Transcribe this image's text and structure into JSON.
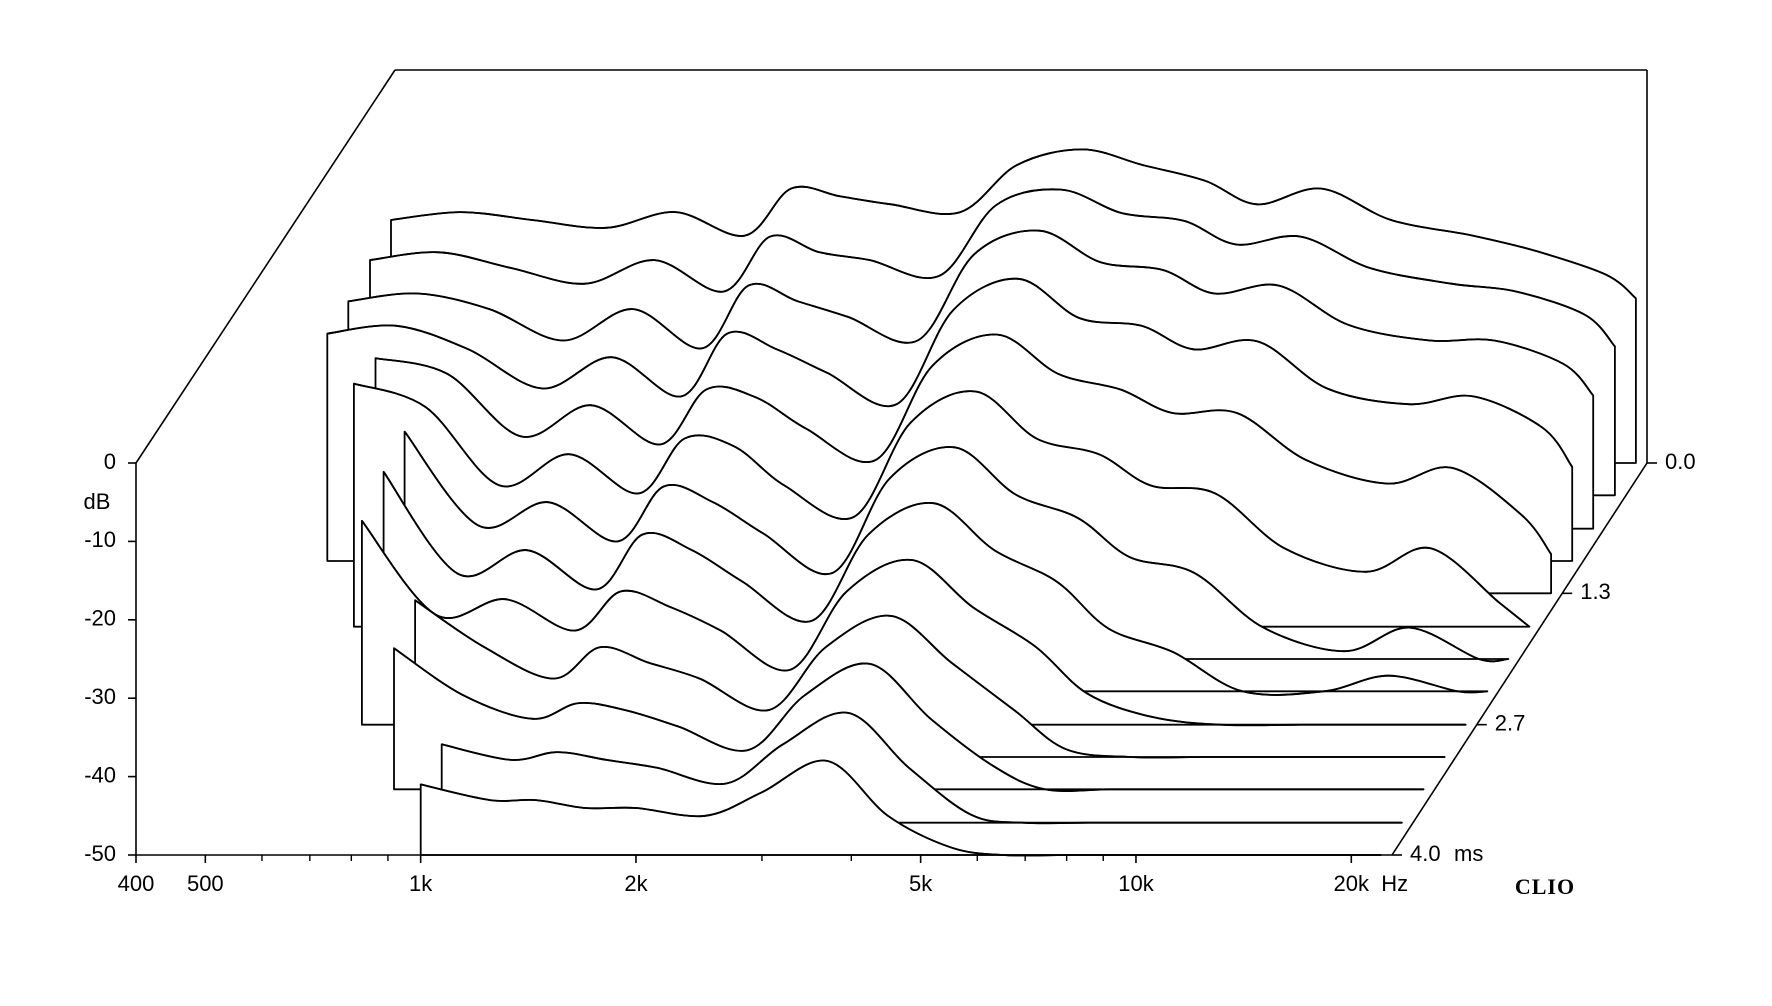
{
  "chart_data": {
    "type": "waterfall",
    "x": [
      400,
      500,
      630,
      800,
      1000,
      1250,
      1450,
      1700,
      2000,
      2500,
      3000,
      3700,
      4500,
      5500,
      6500,
      8000,
      10000,
      13000,
      16000,
      20000,
      22000
    ],
    "xlim": [
      400,
      22800
    ],
    "log_x": true,
    "xticks": [
      400,
      500,
      {
        "value": 1000,
        "label": "1k"
      },
      {
        "value": 2000,
        "label": "2k"
      },
      {
        "value": 5000,
        "label": "5k"
      },
      {
        "value": 10000,
        "label": "10k"
      },
      {
        "value": 20000,
        "label": "20k"
      }
    ],
    "xminorticks": [
      600,
      700,
      800,
      900,
      3000,
      4000,
      6000,
      7000,
      8000,
      9000
    ],
    "x_unit": "Hz",
    "ylim": [
      -50,
      0
    ],
    "yticks": [
      0,
      -10,
      -20,
      -30,
      -40,
      -50
    ],
    "y_unit": "dB",
    "zlim": [
      0,
      4
    ],
    "zticks": [
      {
        "value": 0,
        "label": "0.0"
      },
      {
        "value": 1.33,
        "label": "1.3"
      },
      {
        "value": 2.67,
        "label": "2.7"
      },
      {
        "value": 4,
        "label": "4.0"
      }
    ],
    "z_unit": "ms",
    "color": "#000000",
    "brand": "CLIO",
    "slices": [
      {
        "time": 0,
        "values": [
          -19,
          -18,
          -19,
          -20,
          -18,
          -21,
          -15,
          -16,
          -17,
          -18,
          -12,
          -10,
          -12,
          -14,
          -17,
          -15,
          -19,
          -21,
          -23,
          -26,
          -29
        ]
      },
      {
        "time": 0.33,
        "values": [
          -20,
          -19,
          -21,
          -23,
          -20,
          -24,
          -17,
          -19,
          -20,
          -22,
          -13,
          -11,
          -14,
          -15,
          -18,
          -17,
          -21,
          -23,
          -24,
          -27,
          -31
        ]
      },
      {
        "time": 0.67,
        "values": [
          -21,
          -20,
          -22,
          -26,
          -22,
          -27,
          -19,
          -21,
          -23,
          -26,
          -15,
          -12,
          -16,
          -17,
          -20,
          -19,
          -24,
          -26,
          -26,
          -29,
          -33
        ]
      },
      {
        "time": 1,
        "values": [
          -21,
          -20,
          -23,
          -28,
          -24,
          -29,
          -21,
          -23,
          -26,
          -30,
          -18,
          -14,
          -19,
          -20,
          -23,
          -22,
          -28,
          -30,
          -29,
          -33,
          -38
        ]
      },
      {
        "time": 1.33,
        "values": [
          null,
          -20,
          -22,
          -30,
          -26,
          -31,
          -24,
          -25,
          -29,
          -33,
          -21,
          -17,
          -22,
          -24,
          -27,
          -27,
          -33,
          -36,
          -34,
          -40,
          -45
        ]
      },
      {
        "time": 1.67,
        "values": [
          null,
          -19,
          -22,
          -32,
          -28,
          -33,
          -26,
          -27,
          -32,
          -36,
          -24,
          -20,
          -26,
          -28,
          -32,
          -33,
          -40,
          -43,
          -40,
          -47,
          -50
        ]
      },
      {
        "time": 2,
        "values": [
          null,
          null,
          -21,
          -33,
          -30,
          -35,
          -28,
          -30,
          -34,
          -39,
          -27,
          -23,
          -29,
          -32,
          -37,
          -39,
          -46,
          -49,
          -46,
          -50,
          -50
        ]
      },
      {
        "time": 2.33,
        "values": [
          null,
          null,
          -22,
          -35,
          -32,
          -37,
          -30,
          -32,
          -36,
          -41,
          -30,
          -26,
          -32,
          -36,
          -42,
          -45,
          -50,
          -50,
          -48,
          -50,
          -50
        ]
      },
      {
        "time": 2.67,
        "values": [
          null,
          null,
          -24,
          -36,
          -34,
          -38,
          -33,
          -35,
          -38,
          -43,
          -33,
          -29,
          -35,
          -40,
          -46,
          -49,
          -50,
          -50,
          -50,
          -50,
          -50
        ]
      },
      {
        "time": 3,
        "values": [
          null,
          null,
          null,
          -30,
          -36,
          -40,
          -36,
          -38,
          -40,
          -44,
          -36,
          -32,
          -38,
          -44,
          -49,
          -50,
          -50,
          -50,
          -50,
          -50,
          -50
        ]
      },
      {
        "time": 3.33,
        "values": [
          null,
          null,
          null,
          -32,
          -38,
          -41,
          -39,
          -40,
          -42,
          -45,
          -38,
          -34,
          -41,
          -47,
          -50,
          -50,
          -50,
          -50,
          -50,
          -50,
          -50
        ]
      },
      {
        "time": 3.67,
        "values": [
          null,
          null,
          null,
          null,
          -40,
          -42,
          -41,
          -42,
          -43,
          -45,
          -40,
          -36,
          -43,
          -49,
          -50,
          -50,
          -50,
          -50,
          -50,
          -50,
          -50
        ]
      },
      {
        "time": 4,
        "values": [
          null,
          null,
          null,
          null,
          -41,
          -43,
          -43,
          -44,
          -44,
          -45,
          -42,
          -38,
          -45,
          -49,
          -50,
          -50,
          -50,
          -50,
          -50,
          -50,
          -50
        ]
      }
    ]
  }
}
